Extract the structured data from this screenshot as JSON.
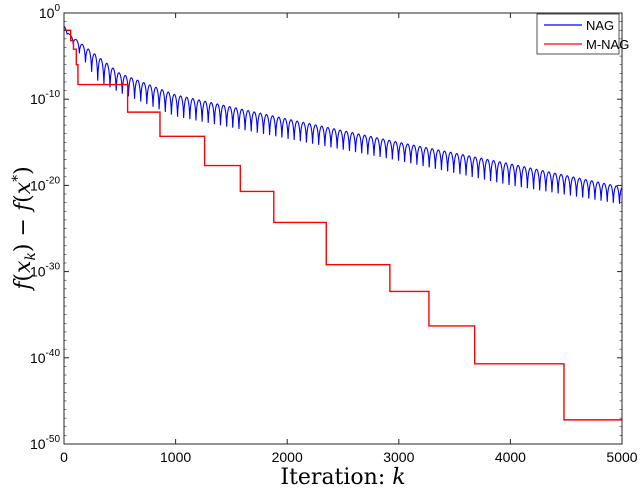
{
  "chart_data": {
    "type": "line",
    "xlabel": "Iteration: k",
    "ylabel": "f(x_k) − f(x*)",
    "xlim": [
      0,
      5000
    ],
    "ylim": [
      1e-50,
      1
    ],
    "yscale": "log",
    "grid": false,
    "legend_position": "top-right",
    "x_ticks": [
      "0",
      "1000",
      "2000",
      "3000",
      "4000",
      "5000"
    ],
    "y_ticks": [
      {
        "base": "10",
        "exp": "0"
      },
      {
        "base": "10",
        "exp": "-10"
      },
      {
        "base": "10",
        "exp": "-20"
      },
      {
        "base": "10",
        "exp": "-30"
      },
      {
        "base": "10",
        "exp": "-40"
      },
      {
        "base": "10",
        "exp": "-50"
      }
    ],
    "series": [
      {
        "name": "NAG",
        "color": "#0000ff",
        "oscillation_period": 55,
        "upper_envelope": [
          [
            0,
            -1.5
          ],
          [
            50,
            -2.5
          ],
          [
            500,
            -7
          ],
          [
            1000,
            -9.5
          ],
          [
            2000,
            -12.3
          ],
          [
            3000,
            -15
          ],
          [
            4000,
            -17.5
          ],
          [
            5000,
            -20.2
          ]
        ],
        "lower_envelope": [
          [
            0,
            -2
          ],
          [
            300,
            -9
          ],
          [
            1000,
            -13
          ],
          [
            2000,
            -15.5
          ],
          [
            3000,
            -18
          ],
          [
            4000,
            -21
          ],
          [
            5000,
            -23
          ]
        ]
      },
      {
        "name": "M-NAG",
        "color": "#ff0000",
        "steps": [
          [
            0,
            -2
          ],
          [
            60,
            -3.2
          ],
          [
            85,
            -4.2
          ],
          [
            110,
            -6
          ],
          [
            125,
            -8.3
          ],
          [
            570,
            -11.5
          ],
          [
            860,
            -14.3
          ],
          [
            1260,
            -17.7
          ],
          [
            1580,
            -20.7
          ],
          [
            1880,
            -24.3
          ],
          [
            2350,
            -29.2
          ],
          [
            2920,
            -32.3
          ],
          [
            3270,
            -36.3
          ],
          [
            3680,
            -40.7
          ],
          [
            4480,
            -47.2
          ],
          [
            5000,
            -47.2
          ]
        ]
      }
    ]
  }
}
